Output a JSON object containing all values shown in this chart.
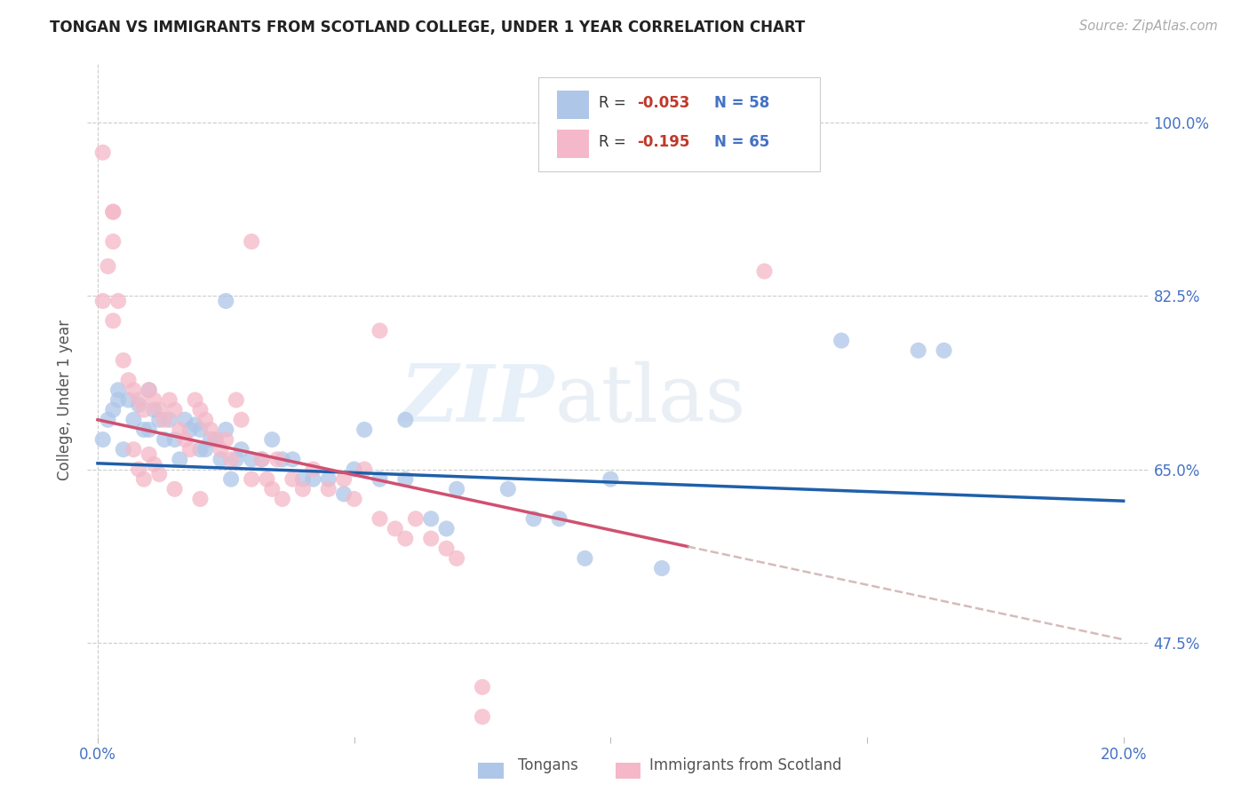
{
  "title": "TONGAN VS IMMIGRANTS FROM SCOTLAND COLLEGE, UNDER 1 YEAR CORRELATION CHART",
  "source": "Source: ZipAtlas.com",
  "ylabel": "College, Under 1 year",
  "xlim": [
    -0.002,
    0.205
  ],
  "ylim": [
    0.38,
    1.06
  ],
  "yticks": [
    0.475,
    0.65,
    0.825,
    1.0
  ],
  "ytick_labels": [
    "47.5%",
    "65.0%",
    "82.5%",
    "100.0%"
  ],
  "xtick_positions": [
    0.0,
    0.05,
    0.1,
    0.15,
    0.2
  ],
  "xtick_labels": [
    "0.0%",
    "",
    "",
    "",
    "20.0%"
  ],
  "watermark_zip": "ZIP",
  "watermark_atlas": "atlas",
  "background_color": "#ffffff",
  "grid_color": "#cccccc",
  "tongan_color": "#aec6e8",
  "scotland_color": "#f4b8c8",
  "tongan_line_color": "#1f5faa",
  "scotland_line_color": "#d05070",
  "tongan_line": [
    [
      0.0,
      0.656
    ],
    [
      0.2,
      0.618
    ]
  ],
  "scotland_line_solid": [
    [
      0.0,
      0.7
    ],
    [
      0.115,
      0.572
    ]
  ],
  "scotland_line_dashed": [
    [
      0.115,
      0.572
    ],
    [
      0.2,
      0.478
    ]
  ],
  "tongan_x": [
    0.001,
    0.002,
    0.003,
    0.004,
    0.004,
    0.005,
    0.006,
    0.007,
    0.008,
    0.009,
    0.01,
    0.01,
    0.011,
    0.012,
    0.013,
    0.014,
    0.015,
    0.016,
    0.017,
    0.018,
    0.019,
    0.02,
    0.021,
    0.022,
    0.023,
    0.024,
    0.025,
    0.026,
    0.027,
    0.028,
    0.03,
    0.032,
    0.034,
    0.036,
    0.038,
    0.04,
    0.042,
    0.045,
    0.048,
    0.05,
    0.052,
    0.055,
    0.06,
    0.065,
    0.07,
    0.08,
    0.085,
    0.09,
    0.1,
    0.11,
    0.06,
    0.025,
    0.145,
    0.16,
    0.165,
    0.02,
    0.068,
    0.095
  ],
  "tongan_y": [
    0.68,
    0.7,
    0.71,
    0.72,
    0.73,
    0.67,
    0.72,
    0.7,
    0.715,
    0.69,
    0.73,
    0.69,
    0.71,
    0.7,
    0.68,
    0.7,
    0.68,
    0.66,
    0.7,
    0.69,
    0.695,
    0.69,
    0.67,
    0.68,
    0.68,
    0.66,
    0.69,
    0.64,
    0.66,
    0.67,
    0.66,
    0.66,
    0.68,
    0.66,
    0.66,
    0.64,
    0.64,
    0.64,
    0.625,
    0.65,
    0.69,
    0.64,
    0.64,
    0.6,
    0.63,
    0.63,
    0.6,
    0.6,
    0.64,
    0.55,
    0.7,
    0.82,
    0.78,
    0.77,
    0.77,
    0.67,
    0.59,
    0.56
  ],
  "scotland_x": [
    0.001,
    0.001,
    0.002,
    0.003,
    0.003,
    0.004,
    0.005,
    0.006,
    0.007,
    0.008,
    0.009,
    0.01,
    0.011,
    0.012,
    0.013,
    0.014,
    0.015,
    0.016,
    0.017,
    0.018,
    0.019,
    0.02,
    0.021,
    0.022,
    0.023,
    0.024,
    0.025,
    0.026,
    0.027,
    0.028,
    0.03,
    0.032,
    0.033,
    0.034,
    0.035,
    0.036,
    0.038,
    0.04,
    0.042,
    0.045,
    0.048,
    0.05,
    0.052,
    0.055,
    0.058,
    0.06,
    0.062,
    0.065,
    0.068,
    0.07,
    0.003,
    0.003,
    0.055,
    0.13,
    0.007,
    0.008,
    0.009,
    0.01,
    0.011,
    0.012,
    0.015,
    0.02,
    0.03,
    0.075,
    0.075
  ],
  "scotland_y": [
    0.97,
    0.82,
    0.855,
    0.8,
    0.91,
    0.82,
    0.76,
    0.74,
    0.73,
    0.72,
    0.71,
    0.73,
    0.72,
    0.71,
    0.7,
    0.72,
    0.71,
    0.69,
    0.68,
    0.67,
    0.72,
    0.71,
    0.7,
    0.69,
    0.68,
    0.67,
    0.68,
    0.66,
    0.72,
    0.7,
    0.88,
    0.66,
    0.64,
    0.63,
    0.66,
    0.62,
    0.64,
    0.63,
    0.65,
    0.63,
    0.64,
    0.62,
    0.65,
    0.6,
    0.59,
    0.58,
    0.6,
    0.58,
    0.57,
    0.56,
    0.88,
    0.91,
    0.79,
    0.85,
    0.67,
    0.65,
    0.64,
    0.665,
    0.655,
    0.645,
    0.63,
    0.62,
    0.64,
    0.43,
    0.4
  ]
}
